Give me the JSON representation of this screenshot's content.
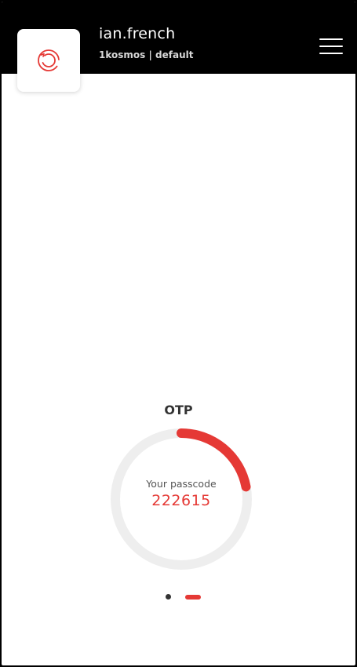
{
  "header": {
    "user_name": "ian.french",
    "subtitle": "1kosmos | default",
    "logo_icon": "refresh-circle-icon",
    "menu_icon": "hamburger-menu-icon"
  },
  "otp": {
    "title": "OTP",
    "passcode_label": "Your passcode",
    "passcode": "222615",
    "timer_remaining_fraction": 0.22
  },
  "pager": {
    "dot_count": 2,
    "active_index": 1
  },
  "colors": {
    "accent": "#e53935",
    "header_bg": "#000000",
    "track": "#eeeeee"
  }
}
